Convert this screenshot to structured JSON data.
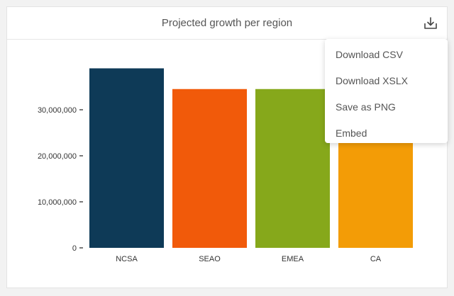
{
  "header": {
    "title": "Projected growth per region",
    "download_icon": "download-tray-icon"
  },
  "menu": {
    "items": [
      {
        "label": "Download CSV"
      },
      {
        "label": "Download XSLX"
      },
      {
        "label": "Save as PNG"
      },
      {
        "label": "Embed"
      }
    ]
  },
  "chart_data": {
    "type": "bar",
    "categories": [
      "NCSA",
      "SEAO",
      "EMEA",
      "CA"
    ],
    "values": [
      39000000,
      34500000,
      34500000,
      31000000
    ],
    "colors": [
      "#0e3a57",
      "#f15a0a",
      "#86a81b",
      "#f39c06"
    ],
    "yticks": [
      0,
      10000000,
      20000000,
      30000000
    ],
    "ytick_labels": [
      "0",
      "10,000,000",
      "20,000,000",
      "30,000,000"
    ],
    "ylim": [
      0,
      40000000
    ],
    "grid": false,
    "legend": "none"
  }
}
